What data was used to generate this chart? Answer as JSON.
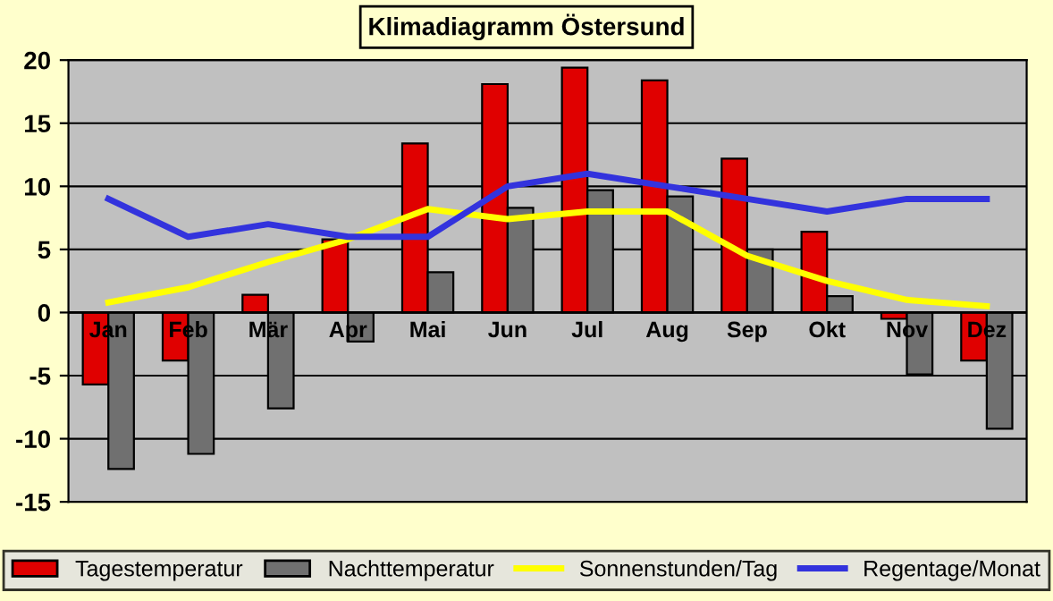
{
  "chart_data": {
    "type": "bar",
    "title": "Klimadiagramm Östersund",
    "categories": [
      "Jan",
      "Feb",
      "Mär",
      "Apr",
      "Mai",
      "Jun",
      "Jul",
      "Aug",
      "Sep",
      "Okt",
      "Nov",
      "Dez"
    ],
    "series": [
      {
        "name": "Tagestemperatur",
        "color": "#e00000",
        "values": [
          -5.7,
          -3.8,
          1.4,
          5.8,
          13.4,
          18.1,
          19.4,
          18.4,
          12.2,
          6.4,
          -0.5,
          -3.8
        ]
      },
      {
        "name": "Nachttemperatur",
        "color": "#707070",
        "values": [
          -12.4,
          -11.2,
          -7.6,
          -2.3,
          3.2,
          8.3,
          9.7,
          9.2,
          5.0,
          1.3,
          -4.9,
          -9.2
        ]
      },
      {
        "name": "Sonnenstunden/Tag",
        "type": "line",
        "color": "#ffff00",
        "values": [
          0.8,
          2.0,
          4.0,
          5.8,
          8.2,
          7.4,
          8.0,
          8.0,
          4.5,
          2.5,
          1.0,
          0.5
        ]
      },
      {
        "name": "Regentage/Monat",
        "type": "line",
        "color": "#3333dd",
        "values": [
          9,
          6,
          7,
          6,
          6,
          10,
          11,
          10,
          9,
          8,
          9,
          9
        ]
      }
    ],
    "ylim": [
      -15,
      20
    ],
    "yticks": [
      -15,
      -10,
      -5,
      0,
      5,
      10,
      15,
      20
    ],
    "grid": "y",
    "legend": "bottom",
    "marker": "none",
    "line_style": "solid"
  }
}
